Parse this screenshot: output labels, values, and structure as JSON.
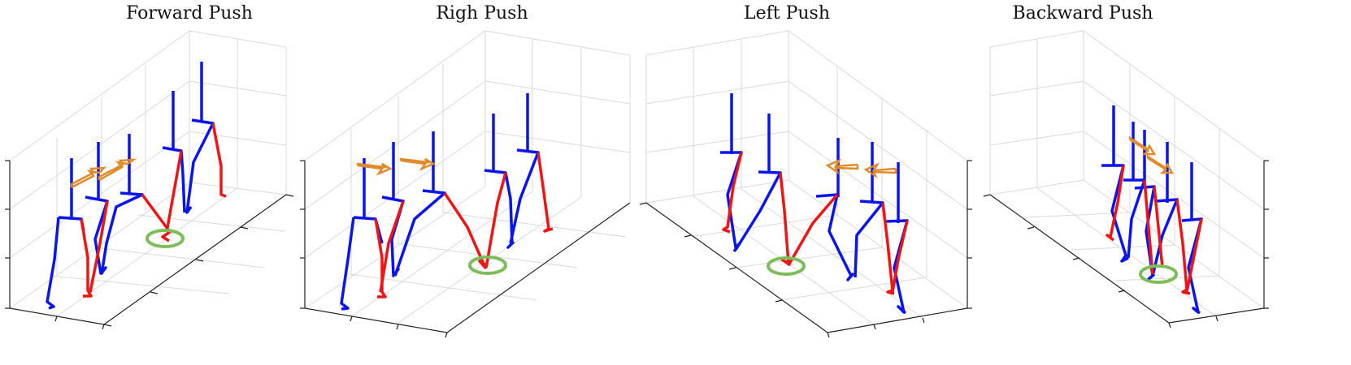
{
  "panels": [
    {
      "title": "Forward Push"
    },
    {
      "title": "Righ Push"
    },
    {
      "title": "Left Push"
    },
    {
      "title": "Backward Push"
    }
  ],
  "colors": {
    "left_leg": "#0a14f0",
    "right_leg": "#f01414",
    "push_arrow": "#e08a2a",
    "foot_target": "#7dbd5a",
    "grid": "#d9d9d9",
    "axis": "#222222"
  }
}
